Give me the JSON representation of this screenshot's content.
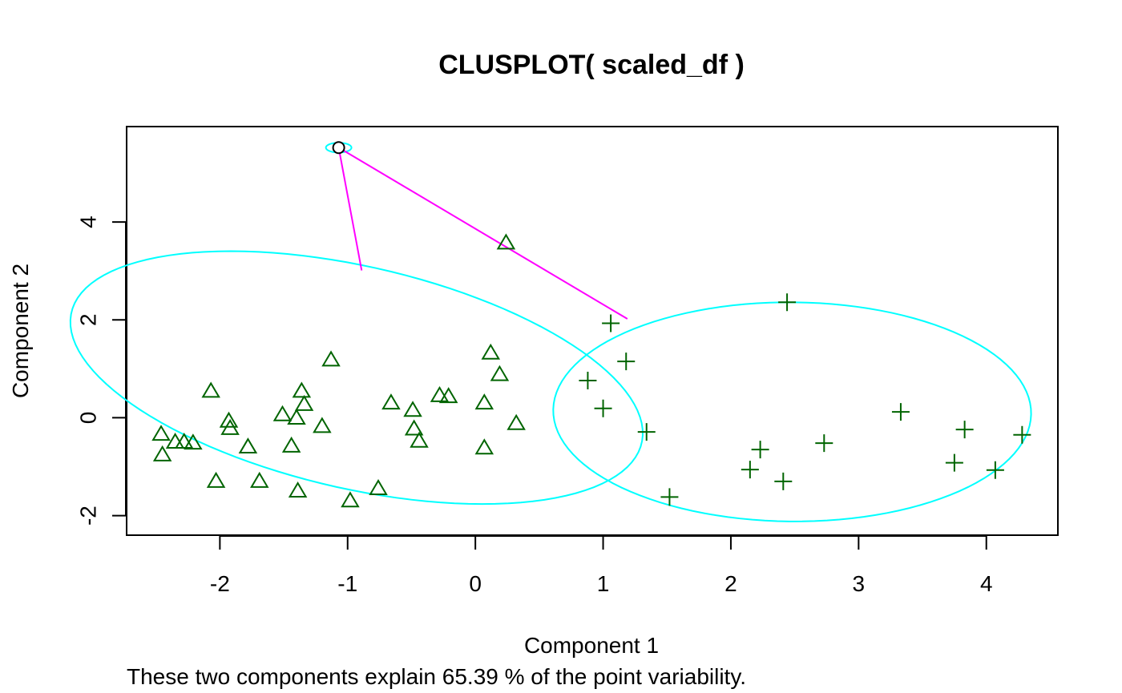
{
  "chart_data": {
    "type": "scatter",
    "title": "CLUSPLOT( scaled_df )",
    "xlabel": "Component 1",
    "ylabel": "Component 2",
    "subtitle": "These two components explain 65.39 % of the point variability.",
    "xlim": [
      -2.73,
      4.56
    ],
    "ylim": [
      -2.4,
      5.95
    ],
    "x_ticks": [
      -2,
      -1,
      0,
      1,
      2,
      3,
      4
    ],
    "y_ticks": [
      -2,
      0,
      2,
      4
    ],
    "grid": false,
    "point_color": "#006400",
    "ellipse_color": "#00FFFF",
    "line_color": "#FF00FF",
    "series": [
      {
        "marker": "triangle",
        "points": [
          [
            0.24,
            3.57
          ],
          [
            -1.13,
            1.18
          ],
          [
            0.12,
            1.32
          ],
          [
            0.19,
            0.88
          ],
          [
            -2.07,
            0.54
          ],
          [
            -1.36,
            0.54
          ],
          [
            -1.34,
            0.27
          ],
          [
            -0.66,
            0.3
          ],
          [
            -0.28,
            0.45
          ],
          [
            -0.21,
            0.43
          ],
          [
            0.07,
            0.3
          ],
          [
            -0.49,
            0.15
          ],
          [
            -1.51,
            0.06
          ],
          [
            -1.4,
            -0.01
          ],
          [
            -1.93,
            -0.07
          ],
          [
            -1.92,
            -0.22
          ],
          [
            -1.2,
            -0.18
          ],
          [
            -0.48,
            -0.23
          ],
          [
            0.32,
            -0.12
          ],
          [
            -2.46,
            -0.34
          ],
          [
            -2.35,
            -0.5
          ],
          [
            -2.28,
            -0.5
          ],
          [
            -2.21,
            -0.52
          ],
          [
            -0.44,
            -0.48
          ],
          [
            -1.78,
            -0.6
          ],
          [
            -1.44,
            -0.58
          ],
          [
            0.07,
            -0.62
          ],
          [
            -2.45,
            -0.76
          ],
          [
            -2.03,
            -1.3
          ],
          [
            -1.69,
            -1.3
          ],
          [
            -1.39,
            -1.5
          ],
          [
            -0.76,
            -1.45
          ],
          [
            -0.98,
            -1.7
          ]
        ]
      },
      {
        "marker": "plus",
        "points": [
          [
            2.44,
            2.36
          ],
          [
            1.06,
            1.93
          ],
          [
            1.18,
            1.15
          ],
          [
            0.88,
            0.76
          ],
          [
            1.0,
            0.19
          ],
          [
            3.33,
            0.12
          ],
          [
            1.34,
            -0.29
          ],
          [
            2.73,
            -0.52
          ],
          [
            3.83,
            -0.24
          ],
          [
            4.28,
            -0.35
          ],
          [
            2.23,
            -0.65
          ],
          [
            2.15,
            -1.06
          ],
          [
            2.41,
            -1.3
          ],
          [
            3.75,
            -0.92
          ],
          [
            4.07,
            -1.07
          ],
          [
            1.52,
            -1.62
          ]
        ]
      },
      {
        "marker": "circle",
        "points": [
          [
            -1.07,
            5.52
          ]
        ]
      }
    ],
    "ellipses": [
      {
        "cx": -0.93,
        "cy": 0.82,
        "rx": 1.78,
        "ry": 2.92,
        "angle_deg": 36.0
      },
      {
        "cx": 2.48,
        "cy": 0.12,
        "rx": 1.87,
        "ry": 2.24,
        "angle_deg": 2.0
      },
      {
        "cx": -1.07,
        "cy": 5.52,
        "rx": 0.1,
        "ry": 0.1,
        "angle_deg": 0
      }
    ],
    "segments": [
      [
        [
          -1.07,
          5.52
        ],
        [
          -0.89,
          3.01
        ]
      ],
      [
        [
          -1.07,
          5.52
        ],
        [
          1.19,
          2.02
        ]
      ]
    ]
  }
}
